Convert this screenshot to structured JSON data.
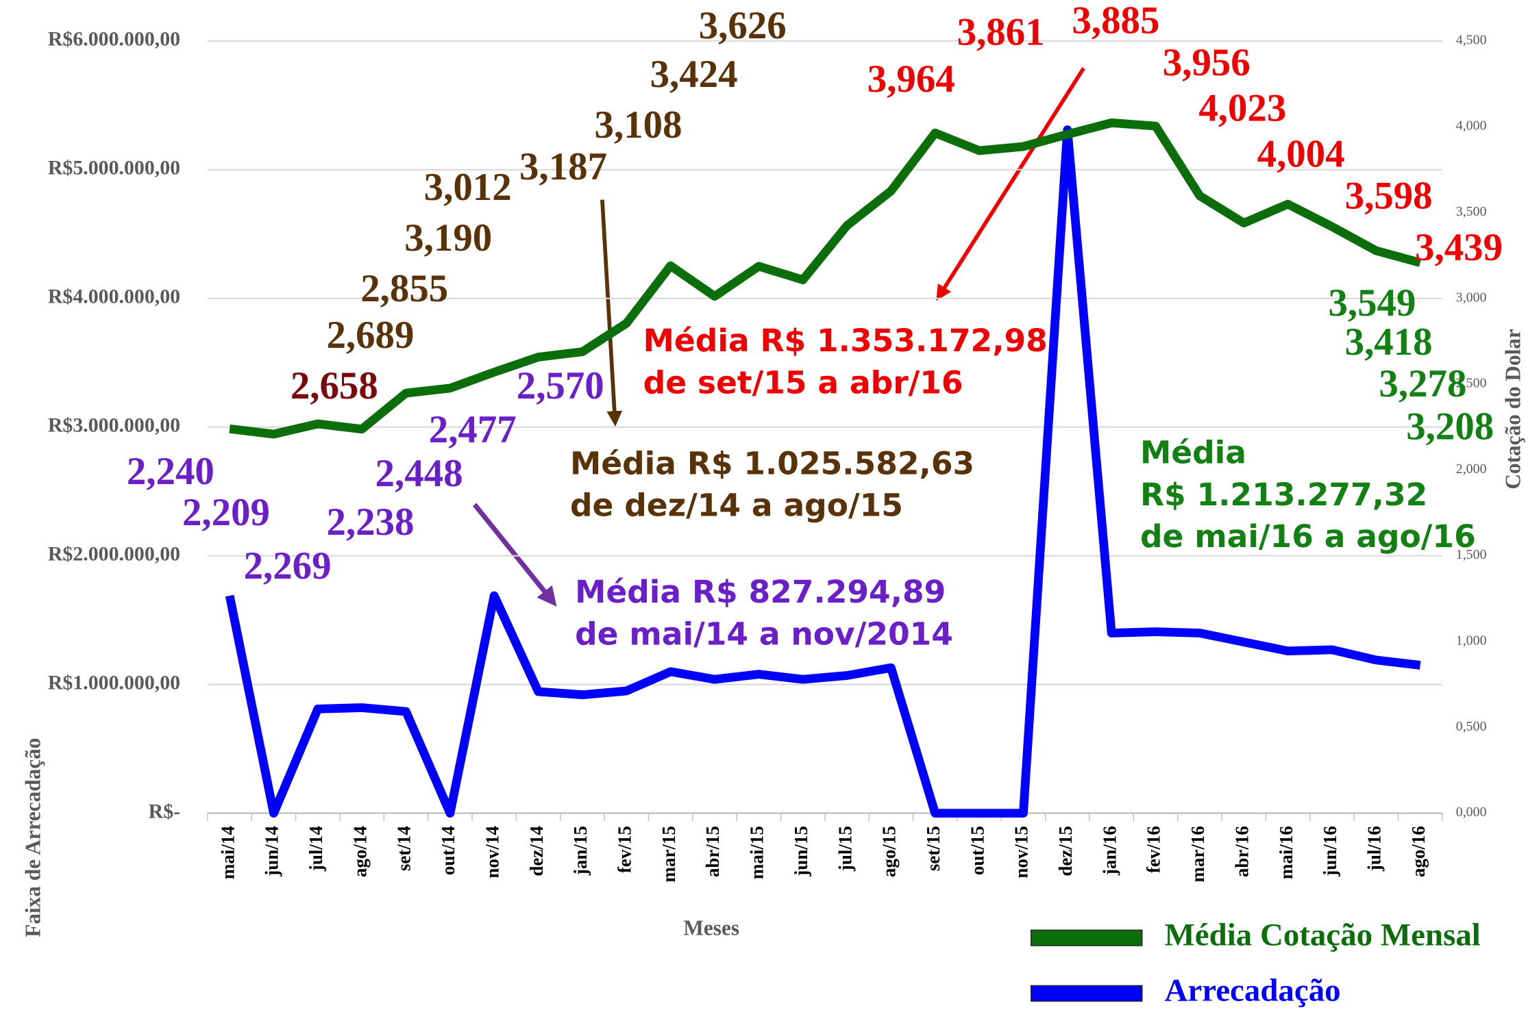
{
  "chart_data": {
    "type": "line",
    "x_label": "Meses",
    "y_label": "Faixa de Arrecadação",
    "y2_label": "Cotação do Dolar",
    "categories": [
      "mai/14",
      "jun/14",
      "jul/14",
      "ago/14",
      "set/14",
      "out/14",
      "nov/14",
      "dez/14",
      "jan/15",
      "fev/15",
      "mar/15",
      "abr/15",
      "mai/15",
      "jun/15",
      "jul/15",
      "ago/15",
      "set/15",
      "out/15",
      "nov/15",
      "dez/15",
      "jan/16",
      "fev/16",
      "mar/16",
      "abr/16",
      "mai/16",
      "jun/16",
      "jul/16",
      "ago/16"
    ],
    "series": [
      {
        "name": "Média Cotação Mensal",
        "color": "#0b6e0b",
        "axis": "y2",
        "values": [
          2.24,
          2.209,
          2.269,
          2.238,
          2.448,
          2.477,
          2.57,
          2.658,
          2.689,
          2.855,
          3.19,
          3.012,
          3.187,
          3.108,
          3.424,
          3.626,
          3.964,
          3.861,
          3.885,
          3.956,
          4.023,
          4.004,
          3.598,
          3.439,
          3.549,
          3.418,
          3.278,
          3.208
        ],
        "value_labels": [
          "2,240",
          "2,209",
          "2,269",
          "2,238",
          "2,448",
          "2,477",
          "2,570",
          "2,658",
          "2,689",
          "2,855",
          "3,190",
          "3,012",
          "3,187",
          "3,108",
          "3,424",
          "3,626",
          "3,964",
          "3,861",
          "3,885",
          "3,956",
          "4,023",
          "4,004",
          "3,598",
          "3,439",
          "3,549",
          "3,418",
          "3,278",
          "3,208"
        ],
        "value_label_colors": [
          "#6a1fc8",
          "#6a1fc8",
          "#6a1fc8",
          "#6a1fc8",
          "#6a1fc8",
          "#6a1fc8",
          "#6a1fc8",
          "#7a0a0a",
          "#5a3208",
          "#5a3208",
          "#5a3208",
          "#5a3208",
          "#5a3208",
          "#5a3208",
          "#5a3208",
          "#5a3208",
          "#ee0000",
          "#ee0000",
          "#ee0000",
          "#ee0000",
          "#ee0000",
          "#ee0000",
          "#ee0000",
          "#ee0000",
          "#128012",
          "#128012",
          "#128012",
          "#128012"
        ]
      },
      {
        "name": "Arrecadação",
        "color": "#0000ff",
        "values": [
          1690000,
          0,
          810000,
          820000,
          790000,
          0,
          1690000,
          945000,
          920000,
          950000,
          1100000,
          1040000,
          1080000,
          1040000,
          1070000,
          1130000,
          0,
          0,
          0,
          5310000,
          1400000,
          1410000,
          1400000,
          1330000,
          1260000,
          1270000,
          1190000,
          1150000
        ]
      }
    ],
    "ylim": [
      0,
      6000000
    ],
    "yticks": [
      {
        "value": 0,
        "label": "R$-"
      },
      {
        "value": 1000000,
        "label": "R$1.000.000,00"
      },
      {
        "value": 2000000,
        "label": "R$2.000.000,00"
      },
      {
        "value": 3000000,
        "label": "R$3.000.000,00"
      },
      {
        "value": 4000000,
        "label": "R$4.000.000,00"
      },
      {
        "value": 5000000,
        "label": "R$5.000.000,00"
      },
      {
        "value": 6000000,
        "label": "R$6.000.000,00"
      }
    ],
    "y2lim": [
      0,
      4.5
    ],
    "y2ticks": [
      {
        "value": 0,
        "label": "0,000"
      },
      {
        "value": 0.5,
        "label": "0,500"
      },
      {
        "value": 1,
        "label": "1,000"
      },
      {
        "value": 1.5,
        "label": "1,500"
      },
      {
        "value": 2,
        "label": "2,000"
      },
      {
        "value": 2.5,
        "label": "2,500"
      },
      {
        "value": 3,
        "label": "3,000"
      },
      {
        "value": 3.5,
        "label": "3,500"
      },
      {
        "value": 4,
        "label": "4,000"
      },
      {
        "value": 4.5,
        "label": "4,500"
      }
    ],
    "grid": true,
    "legend": "bottom-right",
    "annotations": [
      {
        "lines": [
          "Média R$ 1.353.172,98",
          "de set/15 a abr/16"
        ],
        "color": "#ee0000"
      },
      {
        "lines": [
          "Média R$ 1.025.582,63",
          "de dez/14 a ago/15"
        ],
        "color": "#5a3208"
      },
      {
        "lines": [
          "Média R$ 827.294,89",
          "de mai/14 a nov/2014"
        ],
        "color": "#6a1fc8"
      },
      {
        "lines": [
          "Média",
          "R$ 1.213.277,32",
          "de mai/16 a ago/16"
        ],
        "color": "#128012"
      }
    ]
  }
}
